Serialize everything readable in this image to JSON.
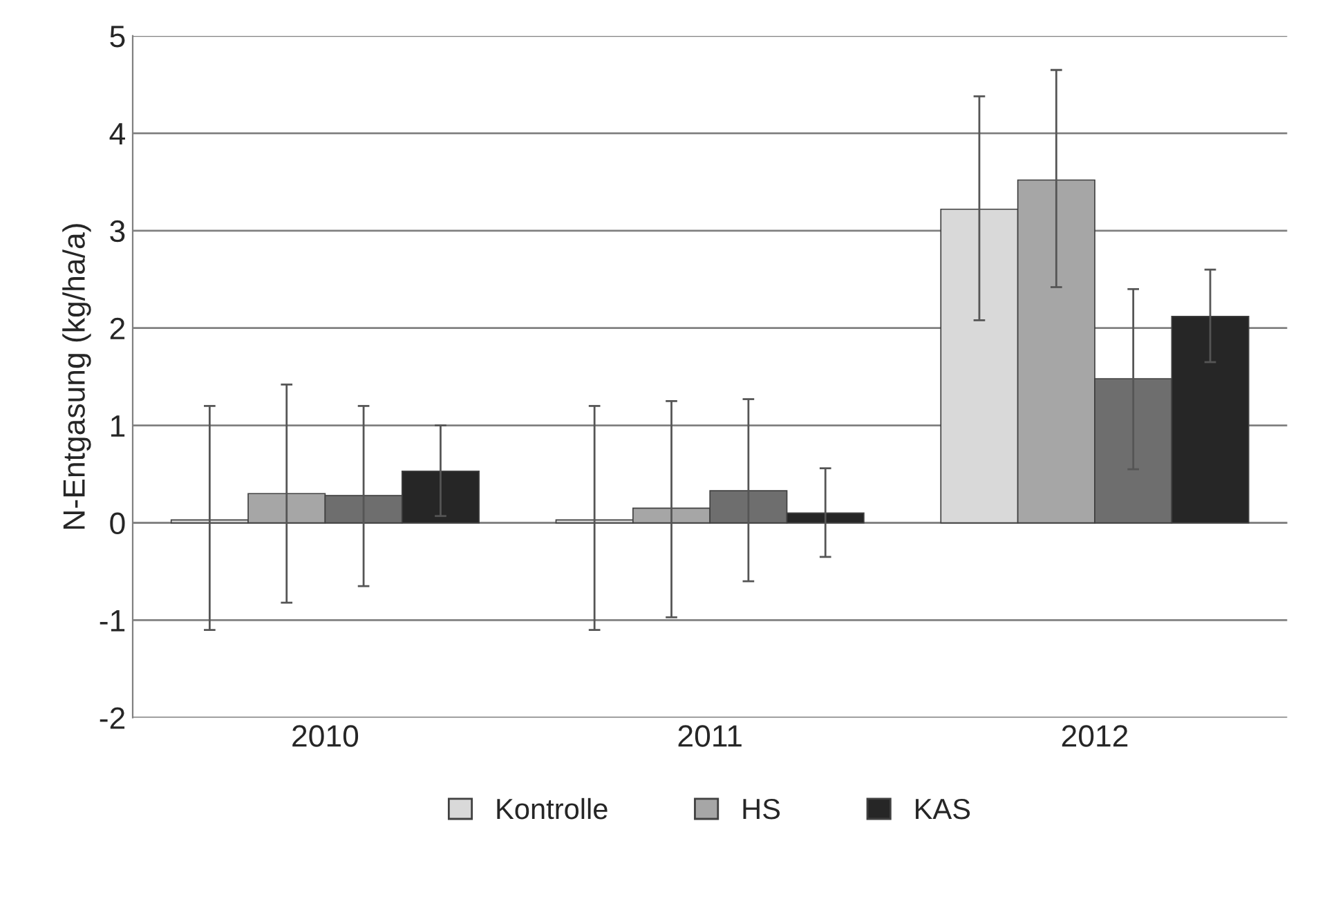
{
  "chart_data": {
    "type": "bar",
    "ylabel": "N-Entgasung (kg/ha/a)",
    "categories": [
      "2010",
      "2011",
      "2012"
    ],
    "series": [
      {
        "name": "Kontrolle",
        "color": "#d9d9d9",
        "values": [
          0.03,
          0.03,
          3.22
        ],
        "errors": [
          [
            -1.1,
            1.2
          ],
          [
            -1.1,
            1.2
          ],
          [
            2.08,
            4.38
          ]
        ]
      },
      {
        "name": "HS",
        "color": "#a6a6a6",
        "values": [
          0.3,
          0.15,
          3.52
        ],
        "errors": [
          [
            -0.82,
            1.42
          ],
          [
            -0.97,
            1.25
          ],
          [
            2.42,
            4.65
          ]
        ]
      },
      {
        "color": "#6e6e6e",
        "values": [
          0.28,
          0.33,
          1.48
        ],
        "errors": [
          [
            -0.65,
            1.2
          ],
          [
            -0.6,
            1.27
          ],
          [
            0.55,
            2.4
          ]
        ]
      },
      {
        "name": "KAS",
        "color": "#262626",
        "values": [
          0.53,
          0.1,
          2.12
        ],
        "errors": [
          [
            0.07,
            1.0
          ],
          [
            -0.35,
            0.56
          ],
          [
            1.65,
            2.6
          ]
        ]
      }
    ],
    "ylim": [
      -2,
      5
    ],
    "yticks": [
      -2,
      -1,
      0,
      1,
      2,
      3,
      4,
      5
    ],
    "grid": "y",
    "legend": "bottom"
  }
}
